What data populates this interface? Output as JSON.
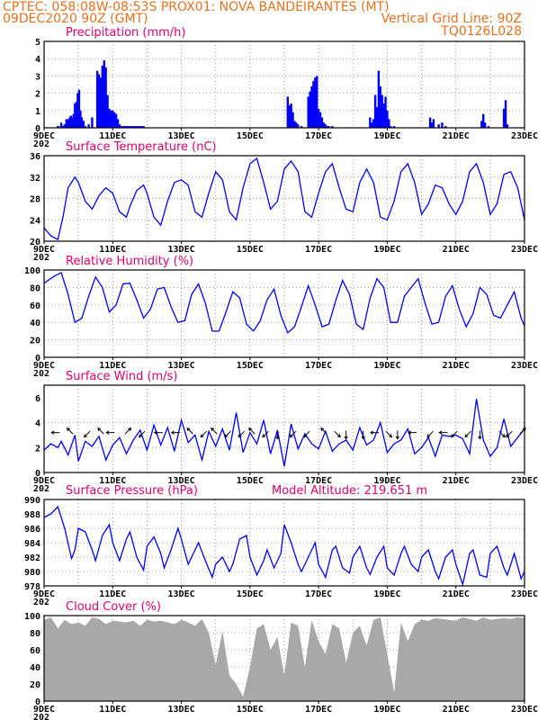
{
  "header": {
    "line1_left": "CPTEC:    058:08W-08:53S   PROX01: NOVA BANDEIRANTES (MT)",
    "line2_left": "09DEC2020 90Z (GMT)",
    "line2_right": "Vertical Grid Line: 90Z",
    "line3_right": "TQ0126L028"
  },
  "colors": {
    "header": "#e8701e",
    "panel_title": "#e0006a",
    "series": "#0000ff",
    "cloud_fill": "#a8a8a8",
    "grid": "#9a9a9a"
  },
  "x_axis": {
    "tick_labels": [
      "9DEC",
      "11DEC",
      "13DEC",
      "15DEC",
      "17DEC",
      "19DEC",
      "21DEC",
      "23DEC"
    ],
    "first_label_suffix": "202"
  },
  "chart_data": [
    {
      "id": "precip",
      "type": "bar",
      "title": "Precipitation  (mm/h)",
      "ylim": [
        0,
        5
      ],
      "yticks": [
        "0",
        "1",
        "2",
        "3",
        "4",
        "5"
      ],
      "grid": true,
      "x_unit": "days since 9DEC",
      "x": [
        0.4,
        0.42,
        0.5,
        0.55,
        0.6,
        0.65,
        0.7,
        0.75,
        0.78,
        0.82,
        0.86,
        0.9,
        0.94,
        0.98,
        1.02,
        1.06,
        1.1,
        1.15,
        1.2,
        1.3,
        1.4,
        1.55,
        1.6,
        1.65,
        1.7,
        1.75,
        1.8,
        1.85,
        1.9,
        1.95,
        2.0,
        2.05,
        2.1,
        2.15,
        2.2,
        2.25,
        2.3,
        2.35,
        2.4,
        2.45,
        2.5,
        2.55,
        2.6,
        2.65,
        2.7,
        2.75,
        2.8,
        2.85,
        2.9,
        7.1,
        7.15,
        7.2,
        7.25,
        7.3,
        7.35,
        7.4,
        7.5,
        7.7,
        7.75,
        7.8,
        7.85,
        7.9,
        7.95,
        8.0,
        8.05,
        8.1,
        8.15,
        8.2,
        8.25,
        8.3,
        8.4,
        9.5,
        9.55,
        9.6,
        9.65,
        9.7,
        9.75,
        9.8,
        9.85,
        9.9,
        9.95,
        10.0,
        10.05,
        10.1,
        10.2,
        11.25,
        11.3,
        11.35,
        11.5,
        11.6,
        11.7,
        12.75,
        12.8,
        12.85,
        12.95,
        13.4,
        13.45,
        13.5
      ],
      "values": [
        0.1,
        0.1,
        0.3,
        0.1,
        0.2,
        0.5,
        0.5,
        0.6,
        0.7,
        0.6,
        0.8,
        1.4,
        1.5,
        2.0,
        2.2,
        1.0,
        0.6,
        0.4,
        0.1,
        0.2,
        0.6,
        3.3,
        3.1,
        2.9,
        3.6,
        3.9,
        3.5,
        1.9,
        1.1,
        1.0,
        1.0,
        0.9,
        0.8,
        0.5,
        0.2,
        0.1,
        0.1,
        0.1,
        0.1,
        0.1,
        0.1,
        0.1,
        0.1,
        0.1,
        0.1,
        0.1,
        0.1,
        0.1,
        0.1,
        1.8,
        1.3,
        1.4,
        0.9,
        0.4,
        0.3,
        0.2,
        0.1,
        1.8,
        2.1,
        2.4,
        2.7,
        2.9,
        3.0,
        1.1,
        0.9,
        0.6,
        0.3,
        0.2,
        0.1,
        0.1,
        0.1,
        0.6,
        0.3,
        0.5,
        1.9,
        1.2,
        3.3,
        2.4,
        1.9,
        1.4,
        1.8,
        1.0,
        0.5,
        0.1,
        0.1,
        0.6,
        0.3,
        0.5,
        0.2,
        0.3,
        0.1,
        0.4,
        0.8,
        0.3,
        0.1,
        1.1,
        1.6,
        0.2
      ]
    },
    {
      "id": "temp",
      "type": "line",
      "title": "Surface Temperature (nC)",
      "ylim": [
        20,
        36
      ],
      "yticks": [
        "20",
        "24",
        "28",
        "32",
        "36"
      ],
      "grid": true,
      "x_unit": "days since 9DEC",
      "x": [
        0.0,
        0.2,
        0.4,
        0.55,
        0.7,
        0.9,
        1.0,
        1.2,
        1.4,
        1.6,
        1.8,
        2.0,
        2.2,
        2.4,
        2.5,
        2.7,
        2.9,
        3.0,
        3.2,
        3.4,
        3.6,
        3.8,
        4.0,
        4.2,
        4.4,
        4.6,
        4.8,
        5.0,
        5.2,
        5.4,
        5.6,
        5.8,
        6.0,
        6.2,
        6.4,
        6.6,
        6.8,
        7.0,
        7.2,
        7.4,
        7.6,
        7.8,
        8.0,
        8.2,
        8.4,
        8.6,
        8.8,
        9.0,
        9.2,
        9.4,
        9.6,
        9.8,
        10.0,
        10.2,
        10.4,
        10.6,
        10.8,
        11.0,
        11.2,
        11.4,
        11.6,
        11.8,
        12.0,
        12.2,
        12.4,
        12.6,
        12.8,
        13.0,
        13.2,
        13.4,
        13.6,
        13.8,
        14.0
      ],
      "values": [
        22.5,
        21.0,
        20.3,
        24.5,
        30.0,
        32.0,
        31.0,
        27.5,
        26.0,
        28.5,
        30.0,
        29.0,
        25.5,
        24.5,
        26.5,
        29.5,
        30.5,
        29.0,
        24.5,
        23.0,
        27.5,
        31.0,
        31.5,
        30.5,
        25.5,
        24.5,
        29.0,
        33.0,
        31.5,
        25.5,
        24.0,
        30.0,
        34.5,
        35.5,
        31.0,
        26.0,
        27.5,
        33.5,
        35.0,
        33.0,
        25.5,
        24.5,
        29.0,
        33.0,
        34.5,
        30.0,
        26.0,
        25.5,
        31.0,
        33.5,
        31.0,
        24.5,
        24.0,
        27.5,
        33.0,
        34.5,
        31.0,
        25.0,
        27.0,
        30.5,
        30.0,
        27.0,
        25.0,
        27.5,
        33.0,
        34.5,
        31.0,
        25.0,
        27.0,
        32.5,
        33.0,
        30.0,
        24.0
      ]
    },
    {
      "id": "rh",
      "type": "line",
      "title": "Relative Humidity  (%)",
      "ylim": [
        0,
        100
      ],
      "yticks": [
        "0",
        "20",
        "40",
        "60",
        "80",
        "100"
      ],
      "grid": true,
      "x_unit": "days since 9DEC",
      "x": [
        0.0,
        0.3,
        0.5,
        0.7,
        0.9,
        1.1,
        1.3,
        1.5,
        1.7,
        1.9,
        2.1,
        2.3,
        2.5,
        2.7,
        2.9,
        3.1,
        3.3,
        3.5,
        3.7,
        3.9,
        4.1,
        4.3,
        4.5,
        4.7,
        4.9,
        5.1,
        5.3,
        5.5,
        5.7,
        5.9,
        6.1,
        6.3,
        6.5,
        6.7,
        6.9,
        7.1,
        7.3,
        7.5,
        7.7,
        7.9,
        8.1,
        8.3,
        8.5,
        8.7,
        8.9,
        9.1,
        9.3,
        9.5,
        9.7,
        9.9,
        10.1,
        10.3,
        10.5,
        10.7,
        10.9,
        11.1,
        11.3,
        11.5,
        11.7,
        11.9,
        12.1,
        12.3,
        12.5,
        12.7,
        12.9,
        13.1,
        13.3,
        13.5,
        13.7,
        13.9,
        14.0
      ],
      "values": [
        85,
        93,
        97,
        72,
        40,
        45,
        70,
        92,
        80,
        52,
        60,
        84,
        85,
        66,
        45,
        55,
        78,
        80,
        58,
        40,
        42,
        72,
        84,
        62,
        30,
        30,
        52,
        75,
        68,
        38,
        30,
        42,
        66,
        78,
        48,
        28,
        35,
        58,
        82,
        60,
        35,
        38,
        65,
        88,
        72,
        38,
        32,
        68,
        90,
        80,
        40,
        40,
        70,
        80,
        90,
        62,
        38,
        40,
        70,
        82,
        55,
        35,
        50,
        80,
        72,
        48,
        45,
        60,
        75,
        45,
        36
      ]
    },
    {
      "id": "wind",
      "type": "line",
      "title": "Surface Wind  (m/s)",
      "ylim": [
        0,
        7
      ],
      "yticks": [
        "0",
        "2",
        "4",
        "6"
      ],
      "grid": true,
      "x_unit": "days since 9DEC",
      "x": [
        0.0,
        0.2,
        0.4,
        0.5,
        0.7,
        0.9,
        1.0,
        1.2,
        1.4,
        1.6,
        1.8,
        2.0,
        2.2,
        2.4,
        2.6,
        2.8,
        3.0,
        3.2,
        3.4,
        3.6,
        3.8,
        4.0,
        4.2,
        4.4,
        4.6,
        4.8,
        5.0,
        5.2,
        5.4,
        5.6,
        5.8,
        6.0,
        6.2,
        6.4,
        6.6,
        6.8,
        7.0,
        7.2,
        7.4,
        7.6,
        7.8,
        8.0,
        8.2,
        8.4,
        8.6,
        8.8,
        9.0,
        9.2,
        9.4,
        9.6,
        9.8,
        10.0,
        10.2,
        10.4,
        10.6,
        10.8,
        11.0,
        11.2,
        11.4,
        11.6,
        11.8,
        12.0,
        12.2,
        12.4,
        12.6,
        12.8,
        13.0,
        13.2,
        13.4,
        13.6,
        13.8,
        14.0
      ],
      "values": [
        1.8,
        2.3,
        2.0,
        2.5,
        1.4,
        3.0,
        0.9,
        2.5,
        2.1,
        2.9,
        1.0,
        2.2,
        2.8,
        1.5,
        2.6,
        3.4,
        1.8,
        3.8,
        2.2,
        3.6,
        1.7,
        4.2,
        2.4,
        3.0,
        1.0,
        3.3,
        2.1,
        3.5,
        1.8,
        4.8,
        1.6,
        3.2,
        2.3,
        4.2,
        1.5,
        3.4,
        0.5,
        3.9,
        1.9,
        3.1,
        2.3,
        1.9,
        3.3,
        1.7,
        2.3,
        2.6,
        1.8,
        3.6,
        2.2,
        2.6,
        4.0,
        1.6,
        2.3,
        2.6,
        3.5,
        1.5,
        2.0,
        2.8,
        1.3,
        3.0,
        2.9,
        3.0,
        2.7,
        1.5,
        5.9,
        2.6,
        1.3,
        2.0,
        4.3,
        2.1,
        2.8,
        3.5
      ]
    },
    {
      "id": "pres",
      "type": "line",
      "title": "Surface Pressure (hPa)",
      "subtitle": "Model Altitude: 219.651  m",
      "ylim": [
        978,
        990
      ],
      "yticks": [
        "978",
        "980",
        "982",
        "984",
        "986",
        "988",
        "990"
      ],
      "grid": true,
      "x_unit": "days since 9DEC",
      "x": [
        0.0,
        0.2,
        0.4,
        0.6,
        0.8,
        0.9,
        1.0,
        1.2,
        1.4,
        1.5,
        1.7,
        1.9,
        2.0,
        2.2,
        2.4,
        2.5,
        2.7,
        2.9,
        3.0,
        3.2,
        3.4,
        3.5,
        3.7,
        3.9,
        4.0,
        4.2,
        4.4,
        4.5,
        4.7,
        4.9,
        5.0,
        5.2,
        5.4,
        5.5,
        5.7,
        5.9,
        6.0,
        6.2,
        6.4,
        6.5,
        6.7,
        6.9,
        7.0,
        7.2,
        7.4,
        7.5,
        7.7,
        7.9,
        8.0,
        8.2,
        8.4,
        8.5,
        8.7,
        8.9,
        9.0,
        9.2,
        9.4,
        9.5,
        9.7,
        9.9,
        10.0,
        10.2,
        10.4,
        10.5,
        10.7,
        10.9,
        11.0,
        11.2,
        11.4,
        11.5,
        11.7,
        11.9,
        12.0,
        12.2,
        12.4,
        12.5,
        12.7,
        12.9,
        13.0,
        13.2,
        13.4,
        13.5,
        13.7,
        13.9,
        14.0
      ],
      "values": [
        987.5,
        988.0,
        989.0,
        986.0,
        981.8,
        983.0,
        986.0,
        985.5,
        983.0,
        981.5,
        985.0,
        986.5,
        984.0,
        981.5,
        984.5,
        985.5,
        982.0,
        980.2,
        983.5,
        984.8,
        982.5,
        980.5,
        983.0,
        986.0,
        984.5,
        981.0,
        983.0,
        984.0,
        981.5,
        979.2,
        981.0,
        982.0,
        980.0,
        981.0,
        984.5,
        985.0,
        982.0,
        979.5,
        981.5,
        983.0,
        980.5,
        982.5,
        986.5,
        984.0,
        981.0,
        980.0,
        982.0,
        984.0,
        981.0,
        979.2,
        983.0,
        983.5,
        980.5,
        979.8,
        982.0,
        983.5,
        980.5,
        979.6,
        982.0,
        983.5,
        980.5,
        979.5,
        982.5,
        983.5,
        981.0,
        980.0,
        982.0,
        983.0,
        980.0,
        979.0,
        982.0,
        983.0,
        981.0,
        978.2,
        982.5,
        983.0,
        979.5,
        979.2,
        982.5,
        983.5,
        980.5,
        979.5,
        982.5,
        979.0,
        980.0
      ]
    },
    {
      "id": "cloud",
      "type": "area",
      "title": "Cloud Cover  (%)",
      "ylim": [
        0,
        100
      ],
      "yticks": [
        "0",
        "20",
        "40",
        "60",
        "80",
        "100"
      ],
      "grid": true,
      "x_unit": "days since 9DEC",
      "x": [
        0.0,
        0.2,
        0.4,
        0.6,
        0.8,
        1.0,
        1.2,
        1.4,
        1.6,
        1.8,
        2.0,
        2.2,
        2.4,
        2.6,
        2.8,
        3.0,
        3.2,
        3.4,
        3.6,
        3.8,
        4.0,
        4.2,
        4.4,
        4.6,
        4.8,
        5.0,
        5.2,
        5.4,
        5.6,
        5.8,
        6.0,
        6.2,
        6.4,
        6.6,
        6.8,
        7.0,
        7.2,
        7.4,
        7.6,
        7.8,
        8.0,
        8.2,
        8.4,
        8.6,
        8.8,
        9.0,
        9.2,
        9.4,
        9.6,
        9.8,
        10.0,
        10.2,
        10.4,
        10.6,
        10.8,
        11.0,
        11.2,
        11.4,
        11.6,
        11.8,
        12.0,
        12.2,
        12.4,
        12.6,
        12.8,
        13.0,
        13.2,
        13.4,
        13.6,
        13.8,
        14.0
      ],
      "values": [
        95,
        98,
        85,
        95,
        90,
        92,
        88,
        98,
        96,
        90,
        94,
        93,
        92,
        94,
        88,
        95,
        93,
        94,
        92,
        90,
        95,
        92,
        88,
        96,
        80,
        42,
        82,
        30,
        20,
        5,
        40,
        85,
        90,
        60,
        75,
        30,
        92,
        88,
        40,
        95,
        70,
        55,
        90,
        85,
        45,
        80,
        88,
        65,
        95,
        98,
        55,
        10,
        92,
        70,
        90,
        95,
        94,
        97,
        96,
        95,
        94,
        98,
        96,
        94,
        98,
        95,
        96,
        97,
        96,
        98,
        97
      ]
    }
  ],
  "wind_barbs": [
    {
      "day": 0.4,
      "dir": "W"
    },
    {
      "day": 0.8,
      "dir": "NW"
    },
    {
      "day": 1.3,
      "dir": "SW"
    },
    {
      "day": 1.7,
      "dir": "NW"
    },
    {
      "day": 2.0,
      "dir": "W"
    },
    {
      "day": 2.4,
      "dir": "NE"
    },
    {
      "day": 2.9,
      "dir": "SW"
    },
    {
      "day": 3.4,
      "dir": "W"
    },
    {
      "day": 3.9,
      "dir": "W"
    },
    {
      "day": 4.3,
      "dir": "NW"
    },
    {
      "day": 4.7,
      "dir": "SW"
    },
    {
      "day": 5.0,
      "dir": "NW"
    },
    {
      "day": 5.4,
      "dir": "SW"
    },
    {
      "day": 5.8,
      "dir": "SW"
    },
    {
      "day": 6.1,
      "dir": "NW"
    },
    {
      "day": 6.5,
      "dir": "SW"
    },
    {
      "day": 6.8,
      "dir": "S"
    },
    {
      "day": 7.3,
      "dir": "SW"
    },
    {
      "day": 7.7,
      "dir": "SW"
    },
    {
      "day": 8.2,
      "dir": "NW"
    },
    {
      "day": 8.5,
      "dir": "SE"
    },
    {
      "day": 8.8,
      "dir": "S"
    },
    {
      "day": 9.3,
      "dir": "S"
    },
    {
      "day": 9.7,
      "dir": "W"
    },
    {
      "day": 10.0,
      "dir": "SE"
    },
    {
      "day": 10.3,
      "dir": "S"
    },
    {
      "day": 10.8,
      "dir": "W"
    },
    {
      "day": 11.3,
      "dir": "SW"
    },
    {
      "day": 11.7,
      "dir": "W"
    },
    {
      "day": 12.0,
      "dir": "SW"
    },
    {
      "day": 12.4,
      "dir": "SW"
    },
    {
      "day": 12.7,
      "dir": "S"
    },
    {
      "day": 13.3,
      "dir": "SE"
    },
    {
      "day": 13.6,
      "dir": "SW"
    },
    {
      "day": 13.9,
      "dir": "NE"
    }
  ]
}
